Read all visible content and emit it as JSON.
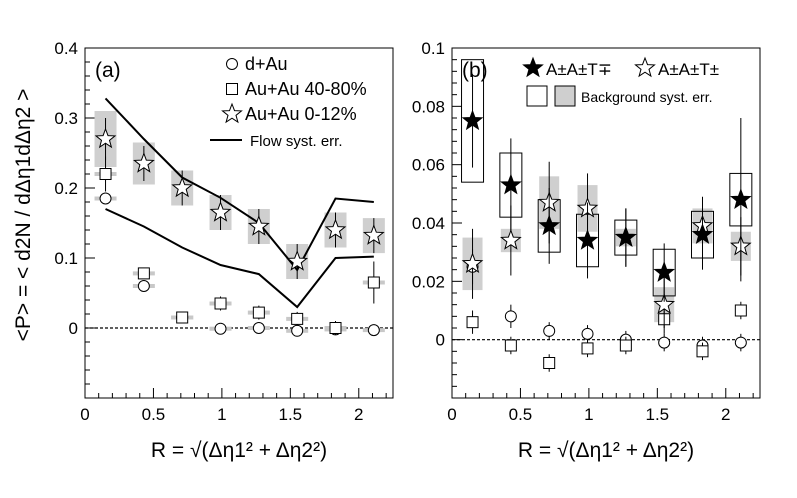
{
  "y_axis_label": "<P> = < d2N / dΔη1dΔη2 >",
  "chart_data": [
    {
      "type": "scatter",
      "panel_label": "(a)",
      "xlabel": "R = √(Δη1² + Δη2²)",
      "xlim": [
        0,
        2.25
      ],
      "ylim": [
        -0.1,
        0.4
      ],
      "xticks": [
        "0",
        "0.5",
        "1",
        "1.5",
        "2"
      ],
      "yticks": [
        "0",
        "0.1",
        "0.2",
        "0.3",
        "0.4"
      ],
      "x": [
        0.15,
        0.43,
        0.71,
        0.99,
        1.27,
        1.55,
        1.83,
        2.11
      ],
      "series": [
        {
          "name": "d+Au",
          "marker": "circle",
          "values": [
            0.185,
            0.06,
            0.015,
            -0.001,
            0.0,
            -0.004,
            -0.002,
            -0.003
          ],
          "errors": [
            0.008,
            0.006,
            0.006,
            0.006,
            0.006,
            0.006,
            0.006,
            0.006
          ]
        },
        {
          "name": "Au+Au 40-80%",
          "marker": "square",
          "values": [
            0.22,
            0.078,
            0.015,
            0.035,
            0.022,
            0.013,
            0.0,
            0.065
          ],
          "errors": [
            0.025,
            0.008,
            0.008,
            0.01,
            0.01,
            0.01,
            0.01,
            0.03
          ]
        },
        {
          "name": "Au+Au 0-12%",
          "marker": "star-open",
          "values": [
            0.27,
            0.235,
            0.2,
            0.165,
            0.145,
            0.095,
            0.14,
            0.132
          ],
          "errors": [
            0.03,
            0.025,
            0.025,
            0.025,
            0.025,
            0.025,
            0.025,
            0.025
          ],
          "syst": [
            0.04,
            0.03,
            0.025,
            0.025,
            0.025,
            0.025,
            0.025,
            0.025
          ]
        }
      ],
      "flow_syst_upper": [
        0.328,
        0.27,
        0.215,
        0.186,
        0.15,
        0.083,
        0.185,
        0.18
      ],
      "flow_syst_lower": [
        0.17,
        0.145,
        0.115,
        0.09,
        0.077,
        0.03,
        0.1,
        0.102
      ],
      "legend": [
        {
          "label": "d+Au",
          "marker": "circle"
        },
        {
          "label": "Au+Au 40-80%",
          "marker": "square"
        },
        {
          "label": "Au+Au 0-12%",
          "marker": "star-open"
        },
        {
          "label": "Flow syst. err.",
          "marker": "line"
        }
      ]
    },
    {
      "type": "scatter",
      "panel_label": "(b)",
      "xlabel": "R = √(Δη1² + Δη2²)",
      "xlim": [
        0,
        2.25
      ],
      "ylim": [
        -0.02,
        0.1
      ],
      "xticks": [
        "0",
        "0.5",
        "1",
        "1.5",
        "2"
      ],
      "yticks": [
        "0",
        "0.02",
        "0.04",
        "0.06",
        "0.08",
        "0.1"
      ],
      "x": [
        0.15,
        0.43,
        0.71,
        0.99,
        1.27,
        1.55,
        1.83,
        2.11
      ],
      "series": [
        {
          "name": "A±A±T∓",
          "marker": "star-filled",
          "values": [
            0.075,
            0.053,
            0.039,
            0.034,
            0.035,
            0.023,
            0.036,
            0.048
          ],
          "errors": [
            0.016,
            0.016,
            0.013,
            0.013,
            0.01,
            0.01,
            0.012,
            0.028
          ],
          "syst_box": [
            0.021,
            0.011,
            0.009,
            0.009,
            0.006,
            0.008,
            0.008,
            0.009
          ]
        },
        {
          "name": "A±A±T±",
          "marker": "star-open",
          "values": [
            0.026,
            0.034,
            0.047,
            0.045,
            0.035,
            0.012,
            0.039,
            0.032
          ],
          "errors": [
            0.012,
            0.012,
            0.014,
            0.012,
            0.01,
            0.01,
            0.01,
            0.01
          ],
          "syst_box": [
            0.009,
            0.004,
            0.009,
            0.008,
            0.003,
            0.006,
            0.006,
            0.005
          ]
        },
        {
          "name": "circles",
          "marker": "circle",
          "values": [
            0.025,
            0.008,
            0.003,
            0.002,
            0.0,
            -0.001,
            -0.002,
            -0.001
          ],
          "errors": [
            0.006,
            0.004,
            0.003,
            0.003,
            0.003,
            0.003,
            0.003,
            0.003
          ]
        },
        {
          "name": "squares",
          "marker": "square",
          "values": [
            0.006,
            -0.002,
            -0.008,
            -0.003,
            -0.002,
            0.007,
            -0.004,
            0.01
          ],
          "errors": [
            0.004,
            0.003,
            0.003,
            0.003,
            0.003,
            0.003,
            0.003,
            0.003
          ]
        }
      ],
      "legend": [
        {
          "label": "A±A±T∓",
          "marker": "star-filled"
        },
        {
          "label": "A±A±T±",
          "marker": "star-open"
        },
        {
          "label": "Background syst. err.",
          "marker": "boxes"
        }
      ]
    }
  ]
}
